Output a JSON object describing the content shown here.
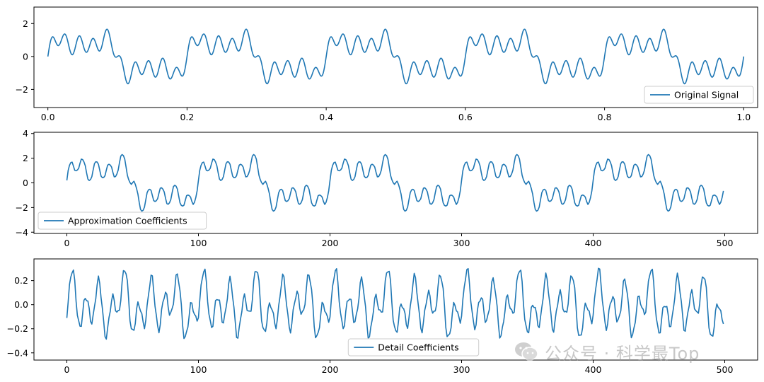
{
  "colors": {
    "series": "#1f77b4",
    "axes": "#000000",
    "legend_edge": "#cccccc"
  },
  "watermark": {
    "text": "公众号 · 科学最Top",
    "icon": "wechat-logo-icon"
  },
  "chart_data": [
    {
      "type": "line",
      "id": "original",
      "title": "",
      "xlabel": "",
      "ylabel": "",
      "xlim": [
        -0.02,
        1.02
      ],
      "ylim": [
        -3.1,
        3.0
      ],
      "xticks": [
        0.0,
        0.2,
        0.4,
        0.6,
        0.8,
        1.0
      ],
      "xtick_labels": [
        "0.0",
        "0.2",
        "0.4",
        "0.6",
        "0.8",
        "1.0"
      ],
      "yticks": [
        2,
        0,
        -2
      ],
      "ytick_labels": [
        "2",
        "0",
        "−2"
      ],
      "legend": {
        "label": "Original Signal",
        "location": "lower right"
      },
      "grid": false,
      "series": [
        {
          "name": "Original Signal",
          "x_start": 0.0,
          "x_end": 1.0,
          "n_points": 1000,
          "model": "sin(2π5t)+sin(2π50t)·0.5+sin(2π15t)·0.5+sin(2π25t)·0.3 (approx.)"
        }
      ]
    },
    {
      "type": "line",
      "id": "approximation",
      "title": "",
      "xlabel": "",
      "ylabel": "",
      "xlim": [
        -25,
        525
      ],
      "ylim": [
        -4.1,
        4.1
      ],
      "xticks": [
        0,
        100,
        200,
        300,
        400,
        500
      ],
      "xtick_labels": [
        "0",
        "100",
        "200",
        "300",
        "400",
        "500"
      ],
      "yticks": [
        4,
        2,
        0,
        -2,
        -4
      ],
      "ytick_labels": [
        "4",
        "2",
        "0",
        "−2",
        "−4"
      ],
      "legend": {
        "label": "Approximation Coefficients",
        "location": "lower left"
      },
      "grid": false,
      "series": [
        {
          "name": "Approximation Coefficients",
          "x_start": 0,
          "x_end": 499,
          "n_points": 500
        }
      ]
    },
    {
      "type": "line",
      "id": "detail",
      "title": "",
      "xlabel": "",
      "ylabel": "",
      "xlim": [
        -25,
        525
      ],
      "ylim": [
        -0.46,
        0.38
      ],
      "xticks": [
        0,
        100,
        200,
        300,
        400,
        500
      ],
      "xtick_labels": [
        "0",
        "100",
        "200",
        "300",
        "400",
        "500"
      ],
      "yticks": [
        0.2,
        0.0,
        -0.2,
        -0.4
      ],
      "ytick_labels": [
        "0.2",
        "0.0",
        "−0.2",
        "−0.4"
      ],
      "legend": {
        "label": "Detail Coefficients",
        "location": "lower center"
      },
      "grid": false,
      "series": [
        {
          "name": "Detail Coefficients",
          "x_start": 0,
          "x_end": 499,
          "n_points": 500
        }
      ]
    }
  ]
}
